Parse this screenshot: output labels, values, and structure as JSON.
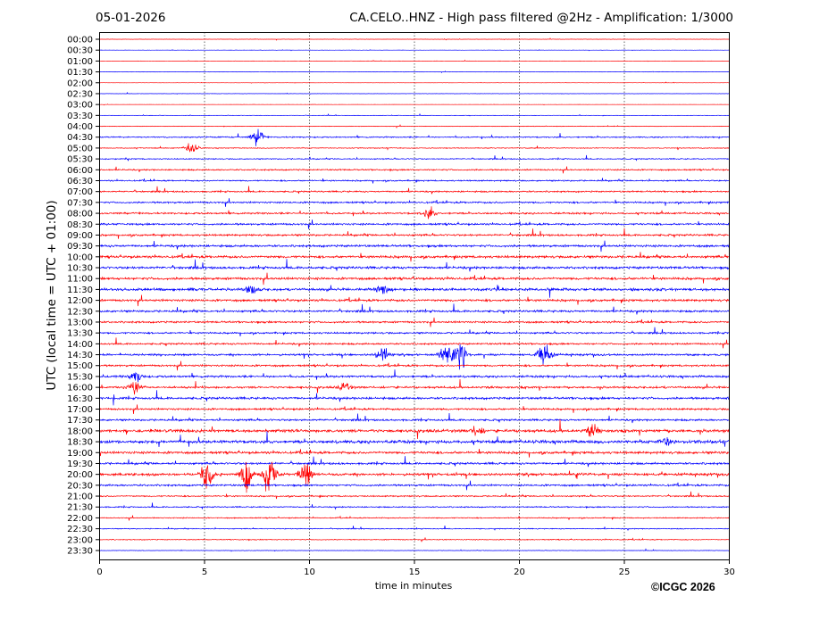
{
  "header": {
    "date": "05-01-2026",
    "title": "CA.CELO..HNZ - High pass filtered @2Hz - Amplification: 1/3000"
  },
  "copyright": "©ICGC 2026",
  "chart_data": {
    "type": "line",
    "title": "CA.CELO..HNZ - High pass filtered @2Hz - Amplification: 1/3000",
    "xlabel": "time in minutes",
    "ylabel": "UTC (local time = UTC + 01:00)",
    "xlim": [
      0,
      30
    ],
    "xticks": [
      "0",
      "5",
      "10",
      "15",
      "20",
      "25",
      "30"
    ],
    "grid": "vertical dotted at 5-minute intervals",
    "colors": {
      "hour": "#ff0000",
      "half_hour": "#0000ff"
    },
    "rows": [
      {
        "label": "00:00",
        "level": 0.08
      },
      {
        "label": "00:30",
        "level": 0.08
      },
      {
        "label": "01:00",
        "level": 0.06
      },
      {
        "label": "01:30",
        "level": 0.08
      },
      {
        "label": "02:00",
        "level": 0.06
      },
      {
        "label": "02:30",
        "level": 0.08
      },
      {
        "label": "03:00",
        "level": 0.06
      },
      {
        "label": "03:30",
        "level": 0.1
      },
      {
        "label": "04:00",
        "level": 0.15
      },
      {
        "label": "04:30",
        "level": 0.35
      },
      {
        "label": "05:00",
        "level": 0.25
      },
      {
        "label": "05:30",
        "level": 0.3
      },
      {
        "label": "06:00",
        "level": 0.4
      },
      {
        "label": "06:30",
        "level": 0.4
      },
      {
        "label": "07:00",
        "level": 0.45
      },
      {
        "label": "07:30",
        "level": 0.5
      },
      {
        "label": "08:00",
        "level": 0.5
      },
      {
        "label": "08:30",
        "level": 0.55
      },
      {
        "label": "09:00",
        "level": 0.55
      },
      {
        "label": "09:30",
        "level": 0.65
      },
      {
        "label": "10:00",
        "level": 0.7
      },
      {
        "label": "10:30",
        "level": 0.7
      },
      {
        "label": "11:00",
        "level": 0.7
      },
      {
        "label": "11:30",
        "level": 0.75
      },
      {
        "label": "12:00",
        "level": 0.65
      },
      {
        "label": "12:30",
        "level": 0.6
      },
      {
        "label": "13:00",
        "level": 0.55
      },
      {
        "label": "13:30",
        "level": 0.5
      },
      {
        "label": "14:00",
        "level": 0.5
      },
      {
        "label": "14:30",
        "level": 0.55
      },
      {
        "label": "15:00",
        "level": 0.55
      },
      {
        "label": "15:30",
        "level": 0.6
      },
      {
        "label": "16:00",
        "level": 0.6
      },
      {
        "label": "16:30",
        "level": 0.65
      },
      {
        "label": "17:00",
        "level": 0.55
      },
      {
        "label": "17:30",
        "level": 0.55
      },
      {
        "label": "18:00",
        "level": 0.85
      },
      {
        "label": "18:30",
        "level": 0.9
      },
      {
        "label": "19:00",
        "level": 0.7
      },
      {
        "label": "19:30",
        "level": 0.6
      },
      {
        "label": "20:00",
        "level": 0.7
      },
      {
        "label": "20:30",
        "level": 0.55
      },
      {
        "label": "21:00",
        "level": 0.4
      },
      {
        "label": "21:30",
        "level": 0.35
      },
      {
        "label": "22:00",
        "level": 0.3
      },
      {
        "label": "22:30",
        "level": 0.25
      },
      {
        "label": "23:00",
        "level": 0.25
      },
      {
        "label": "23:30",
        "level": 0.12
      }
    ],
    "events": [
      {
        "row": "04:30",
        "minute": 7.5,
        "amplitude": 8
      },
      {
        "row": "05:00",
        "minute": 4.4,
        "amplitude": 6
      },
      {
        "row": "08:00",
        "minute": 15.7,
        "amplitude": 5
      },
      {
        "row": "11:30",
        "minute": 7.2,
        "amplitude": 5
      },
      {
        "row": "11:30",
        "minute": 13.5,
        "amplitude": 5
      },
      {
        "row": "14:30",
        "minute": 13.5,
        "amplitude": 8
      },
      {
        "row": "14:30",
        "minute": 16.5,
        "amplitude": 12
      },
      {
        "row": "14:30",
        "minute": 17.2,
        "amplitude": 16
      },
      {
        "row": "14:30",
        "minute": 21.2,
        "amplitude": 14
      },
      {
        "row": "15:30",
        "minute": 1.7,
        "amplitude": 6
      },
      {
        "row": "16:00",
        "minute": 1.7,
        "amplitude": 7
      },
      {
        "row": "16:00",
        "minute": 11.7,
        "amplitude": 6
      },
      {
        "row": "18:00",
        "minute": 18,
        "amplitude": 6
      },
      {
        "row": "18:00",
        "minute": 23.5,
        "amplitude": 6
      },
      {
        "row": "18:30",
        "minute": 27,
        "amplitude": 6
      },
      {
        "row": "20:00",
        "minute": 5.1,
        "amplitude": 16
      },
      {
        "row": "20:00",
        "minute": 7,
        "amplitude": 18
      },
      {
        "row": "20:00",
        "minute": 8.1,
        "amplitude": 22
      },
      {
        "row": "20:00",
        "minute": 9.8,
        "amplitude": 12
      }
    ]
  }
}
